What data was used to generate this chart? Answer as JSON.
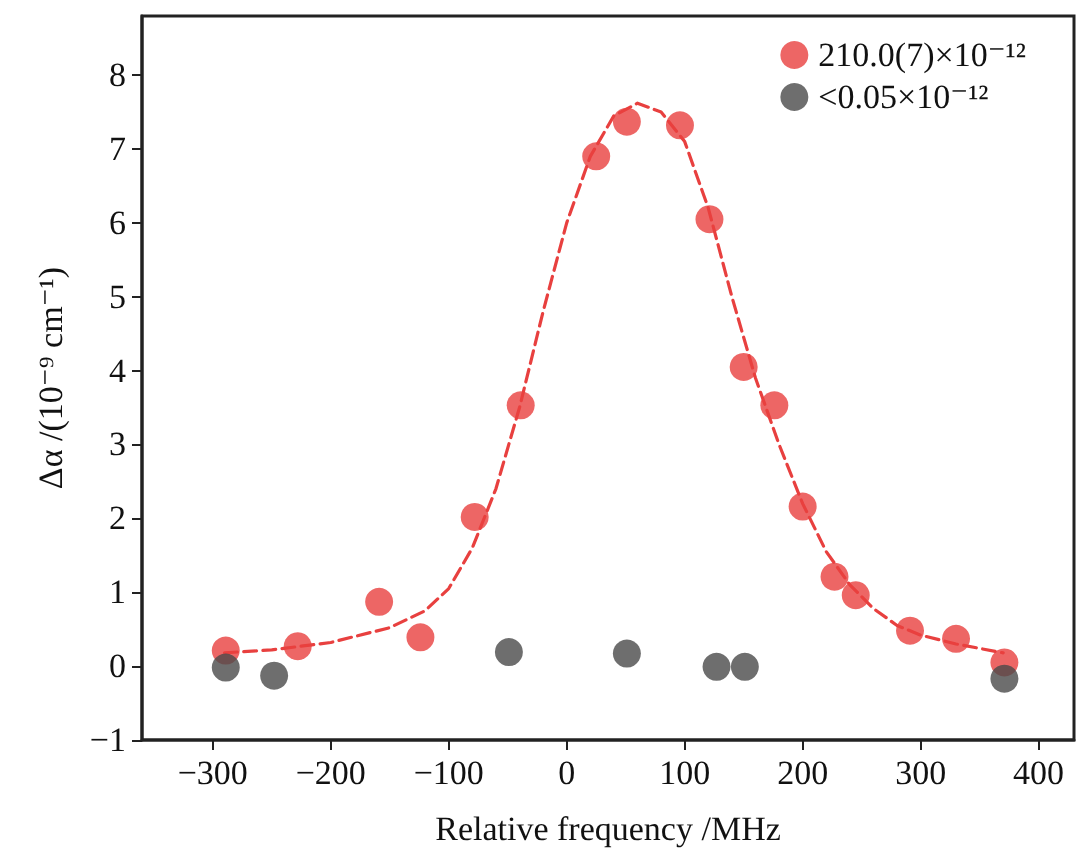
{
  "chart_data": {
    "type": "scatter",
    "xlabel": "Relative frequency /MHz",
    "ylabel": "Δα /(10⁻⁹ cm⁻¹)",
    "xlim": [
      -360,
      430
    ],
    "xticks": [
      -300,
      -200,
      -100,
      0,
      100,
      200,
      300,
      400
    ],
    "ylim": [
      -1,
      8.8
    ],
    "yticks": [
      -1,
      0,
      1,
      2,
      3,
      4,
      5,
      6,
      7,
      8
    ],
    "grid": false,
    "legend": "top right",
    "marker": "circle",
    "series": [
      {
        "name": "210.0(7)×10⁻¹²",
        "color": "#e8403f",
        "x": [
          -289,
          -228,
          -159,
          -124,
          -78,
          -39,
          25,
          51,
          96,
          121,
          150,
          176,
          200,
          227,
          245,
          291,
          330,
          371
        ],
        "values": [
          0.21,
          0.27,
          0.87,
          0.39,
          2.02,
          3.53,
          6.9,
          7.37,
          7.32,
          6.05,
          4.05,
          3.53,
          2.16,
          1.21,
          0.96,
          0.48,
          0.37,
          0.05
        ]
      },
      {
        "name": "<0.05×10⁻¹²",
        "color": "#4a4a4a",
        "x": [
          -289,
          -248,
          -49,
          51,
          127,
          151,
          371
        ],
        "values": [
          -0.02,
          -0.13,
          0.19,
          0.17,
          -0.01,
          -0.01,
          -0.17
        ]
      },
      {
        "type": "line",
        "color": "#e8403f",
        "marker": "none",
        "line_style": "dashed",
        "x": [
          -290,
          -250,
          -200,
          -150,
          -120,
          -100,
          -80,
          -60,
          -40,
          -20,
          0,
          20,
          40,
          60,
          80,
          100,
          120,
          140,
          160,
          180,
          200,
          220,
          240,
          260,
          280,
          300,
          330,
          370
        ],
        "values": [
          0.18,
          0.22,
          0.32,
          0.52,
          0.75,
          1.05,
          1.6,
          2.4,
          3.5,
          4.8,
          6.0,
          6.9,
          7.45,
          7.62,
          7.5,
          7.1,
          6.2,
          5.0,
          3.9,
          3.0,
          2.2,
          1.55,
          1.1,
          0.78,
          0.55,
          0.42,
          0.3,
          0.18
        ]
      }
    ]
  }
}
